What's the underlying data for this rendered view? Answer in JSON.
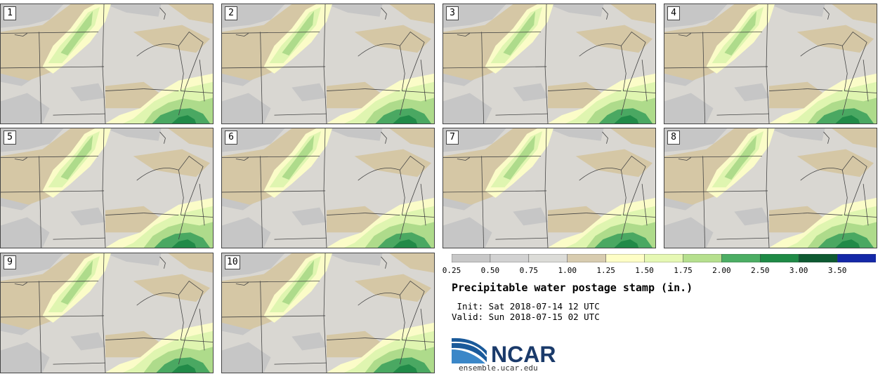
{
  "panels": [
    {
      "label": "1"
    },
    {
      "label": "2"
    },
    {
      "label": "3"
    },
    {
      "label": "4"
    },
    {
      "label": "5"
    },
    {
      "label": "6"
    },
    {
      "label": "7"
    },
    {
      "label": "8"
    },
    {
      "label": "9"
    },
    {
      "label": "10"
    }
  ],
  "colorbar": {
    "ticks": [
      "0.25",
      "0.50",
      "0.75",
      "1.00",
      "1.25",
      "1.50",
      "1.75",
      "2.00",
      "2.50",
      "3.00",
      "3.50"
    ],
    "colors": [
      "#c8c8c8",
      "#d2d2d2",
      "#dcdcd8",
      "#d8ccb0",
      "#fefec6",
      "#e6f8b4",
      "#b6e08e",
      "#4cae64",
      "#1e8a46",
      "#0e5a32",
      "#1428a8"
    ]
  },
  "title": "Precipitable water postage stamp (in.)",
  "init": " Init: Sat 2018-07-14 12 UTC",
  "valid": "Valid: Sun 2018-07-15 02 UTC",
  "logo": {
    "text": "NCAR",
    "url": "ensemble.ucar.edu"
  }
}
